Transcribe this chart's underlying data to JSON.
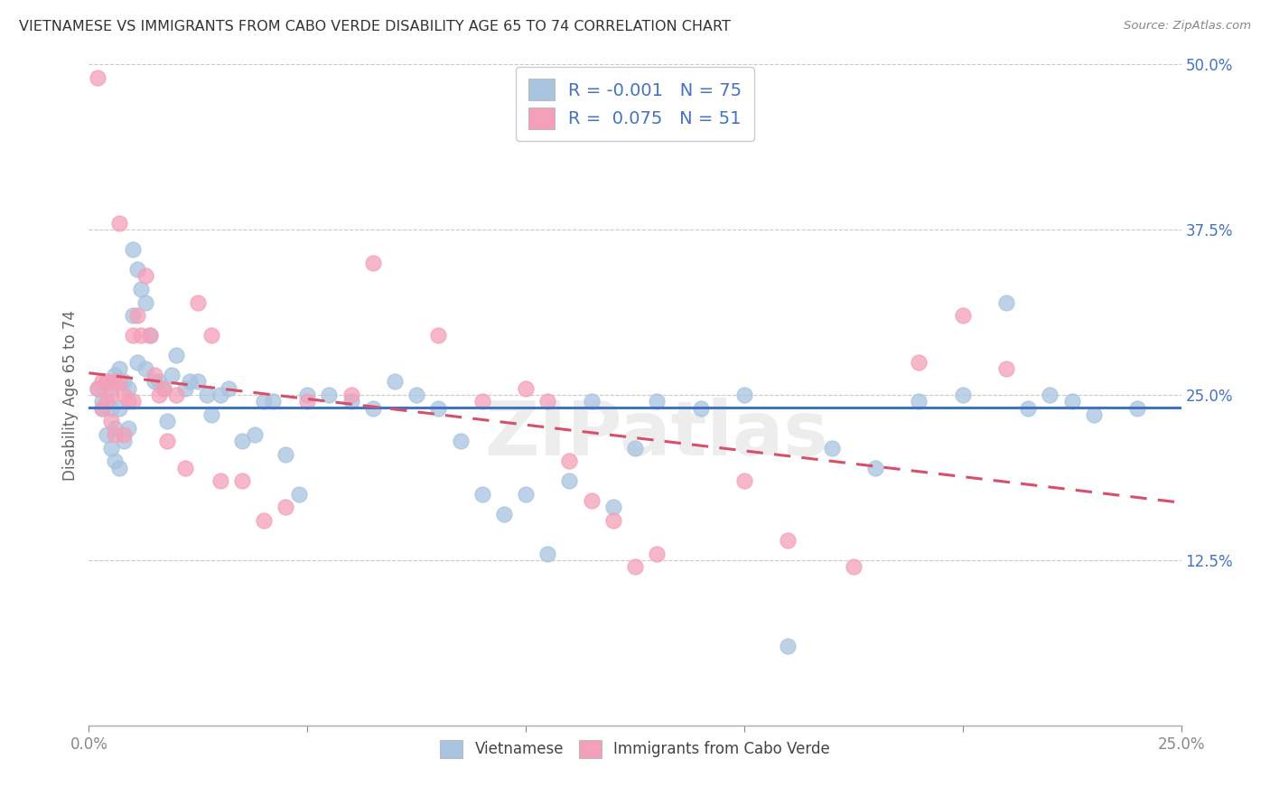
{
  "title": "VIETNAMESE VS IMMIGRANTS FROM CABO VERDE DISABILITY AGE 65 TO 74 CORRELATION CHART",
  "source": "Source: ZipAtlas.com",
  "ylabel": "Disability Age 65 to 74",
  "xlim": [
    0.0,
    0.25
  ],
  "ylim": [
    0.0,
    0.5
  ],
  "xticks": [
    0.0,
    0.05,
    0.1,
    0.15,
    0.2,
    0.25
  ],
  "yticks": [
    0.0,
    0.125,
    0.25,
    0.375,
    0.5
  ],
  "xtick_labels": [
    "0.0%",
    "",
    "",
    "",
    "",
    "25.0%"
  ],
  "ytick_labels": [
    "",
    "12.5%",
    "25.0%",
    "37.5%",
    "50.0%"
  ],
  "grid_color": "#c8c8c8",
  "background_color": "#ffffff",
  "watermark": "ZIPatlas",
  "legend_r_blue": "-0.001",
  "legend_n_blue": "75",
  "legend_r_pink": "0.075",
  "legend_n_pink": "51",
  "blue_color": "#a8c4e0",
  "pink_color": "#f4a0b8",
  "line_blue": "#4472c4",
  "line_pink": "#d94f6a",
  "vietnamese_x": [
    0.002,
    0.003,
    0.003,
    0.004,
    0.004,
    0.005,
    0.005,
    0.005,
    0.006,
    0.006,
    0.006,
    0.007,
    0.007,
    0.007,
    0.008,
    0.008,
    0.009,
    0.009,
    0.01,
    0.01,
    0.011,
    0.011,
    0.012,
    0.013,
    0.013,
    0.014,
    0.015,
    0.016,
    0.017,
    0.018,
    0.019,
    0.02,
    0.022,
    0.023,
    0.025,
    0.027,
    0.028,
    0.03,
    0.032,
    0.035,
    0.038,
    0.04,
    0.042,
    0.045,
    0.048,
    0.05,
    0.055,
    0.06,
    0.065,
    0.07,
    0.075,
    0.08,
    0.085,
    0.09,
    0.095,
    0.1,
    0.105,
    0.11,
    0.115,
    0.12,
    0.125,
    0.13,
    0.14,
    0.15,
    0.16,
    0.17,
    0.18,
    0.19,
    0.2,
    0.21,
    0.215,
    0.22,
    0.225,
    0.23,
    0.24
  ],
  "vietnamese_y": [
    0.255,
    0.245,
    0.24,
    0.26,
    0.22,
    0.255,
    0.24,
    0.21,
    0.265,
    0.225,
    0.2,
    0.27,
    0.24,
    0.195,
    0.26,
    0.215,
    0.255,
    0.225,
    0.36,
    0.31,
    0.345,
    0.275,
    0.33,
    0.32,
    0.27,
    0.295,
    0.26,
    0.26,
    0.255,
    0.23,
    0.265,
    0.28,
    0.255,
    0.26,
    0.26,
    0.25,
    0.235,
    0.25,
    0.255,
    0.215,
    0.22,
    0.245,
    0.245,
    0.205,
    0.175,
    0.25,
    0.25,
    0.245,
    0.24,
    0.26,
    0.25,
    0.24,
    0.215,
    0.175,
    0.16,
    0.175,
    0.13,
    0.185,
    0.245,
    0.165,
    0.21,
    0.245,
    0.24,
    0.25,
    0.06,
    0.21,
    0.195,
    0.245,
    0.25,
    0.32,
    0.24,
    0.25,
    0.245,
    0.235,
    0.24
  ],
  "caboverde_x": [
    0.002,
    0.002,
    0.003,
    0.003,
    0.004,
    0.004,
    0.005,
    0.005,
    0.006,
    0.006,
    0.007,
    0.007,
    0.008,
    0.008,
    0.009,
    0.01,
    0.01,
    0.011,
    0.012,
    0.013,
    0.014,
    0.015,
    0.016,
    0.017,
    0.018,
    0.02,
    0.022,
    0.025,
    0.028,
    0.03,
    0.035,
    0.04,
    0.045,
    0.05,
    0.06,
    0.065,
    0.08,
    0.09,
    0.1,
    0.105,
    0.11,
    0.115,
    0.12,
    0.125,
    0.13,
    0.15,
    0.16,
    0.175,
    0.19,
    0.2,
    0.21
  ],
  "caboverde_y": [
    0.49,
    0.255,
    0.26,
    0.24,
    0.26,
    0.245,
    0.25,
    0.23,
    0.26,
    0.22,
    0.38,
    0.26,
    0.25,
    0.22,
    0.245,
    0.295,
    0.245,
    0.31,
    0.295,
    0.34,
    0.295,
    0.265,
    0.25,
    0.255,
    0.215,
    0.25,
    0.195,
    0.32,
    0.295,
    0.185,
    0.185,
    0.155,
    0.165,
    0.245,
    0.25,
    0.35,
    0.295,
    0.245,
    0.255,
    0.245,
    0.2,
    0.17,
    0.155,
    0.12,
    0.13,
    0.185,
    0.14,
    0.12,
    0.275,
    0.31,
    0.27
  ]
}
